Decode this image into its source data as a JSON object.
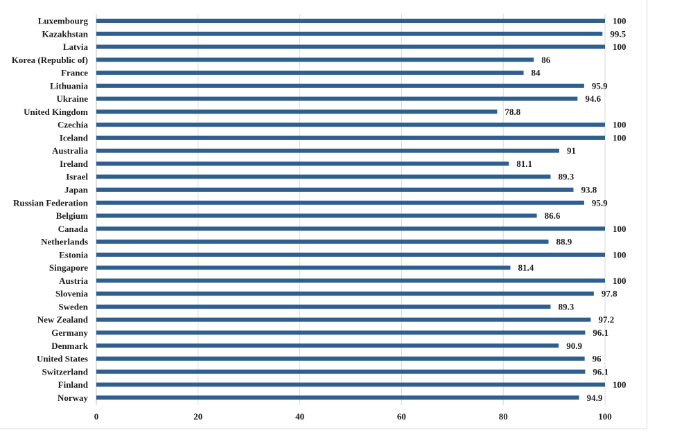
{
  "chart_data": {
    "type": "bar",
    "orientation": "horizontal",
    "title": "",
    "xlabel": "",
    "ylabel": "",
    "xlim": [
      0,
      100
    ],
    "x_ticks": [
      "0",
      "20",
      "40",
      "60",
      "80",
      "100"
    ],
    "grid": "vertical",
    "legend": "none",
    "bar_color": "#2e5f8f",
    "gridline_color": "#d9d9d9",
    "categories": [
      "Luxembourg",
      "Kazakhstan",
      "Latvia",
      "Korea (Republic of)",
      "France",
      "Lithuania",
      "Ukraine",
      "United Kingdom",
      "Czechia",
      "Iceland",
      "Australia",
      "Ireland",
      "Israel",
      "Japan",
      "Russian Federation",
      "Belgium",
      "Canada",
      "Netherlands",
      "Estonia",
      "Singapore",
      "Austria",
      "Slovenia",
      "Sweden",
      "New Zealand",
      "Germany",
      "Denmark",
      "United States",
      "Switzerland",
      "Finland",
      "Norway"
    ],
    "values": [
      100,
      99.5,
      100,
      86,
      84,
      95.9,
      94.6,
      78.8,
      100,
      100,
      91,
      81.1,
      89.3,
      93.8,
      95.9,
      86.6,
      100,
      88.9,
      100,
      81.4,
      100,
      97.8,
      89.3,
      97.2,
      96.1,
      90.9,
      96,
      96.1,
      100,
      94.9
    ],
    "value_labels": [
      "100",
      "99.5",
      "100",
      "86",
      "84",
      "95.9",
      "94.6",
      "78.8",
      "100",
      "100",
      "91",
      "81.1",
      "89.3",
      "93.8",
      "95.9",
      "86.6",
      "100",
      "88.9",
      "100",
      "81.4",
      "100",
      "97.8",
      "89.3",
      "97.2",
      "96.1",
      "90.9",
      "96",
      "96.1",
      "100",
      "94.9"
    ]
  }
}
